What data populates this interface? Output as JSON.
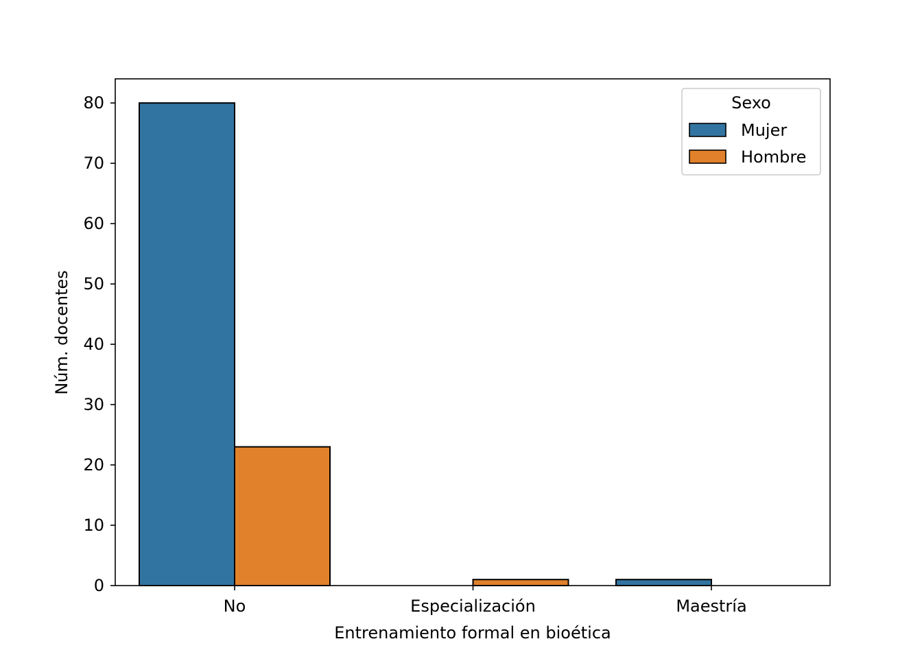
{
  "chart_data": {
    "type": "bar",
    "categories": [
      "No",
      "Especialización",
      "Maestría"
    ],
    "series": [
      {
        "name": "Mujer",
        "values": [
          80,
          0,
          1
        ],
        "color": "#3274a1"
      },
      {
        "name": "Hombre",
        "values": [
          23,
          1,
          0
        ],
        "color": "#e1812c"
      }
    ],
    "title": "",
    "xlabel": "Entrenamiento formal en bioética",
    "ylabel": "Núm. docentes",
    "ylim": [
      0,
      84
    ],
    "yticks": [
      0,
      10,
      20,
      30,
      40,
      50,
      60,
      70,
      80
    ],
    "legend": {
      "title": "Sexo",
      "placement": "top-right"
    },
    "grid": false
  }
}
